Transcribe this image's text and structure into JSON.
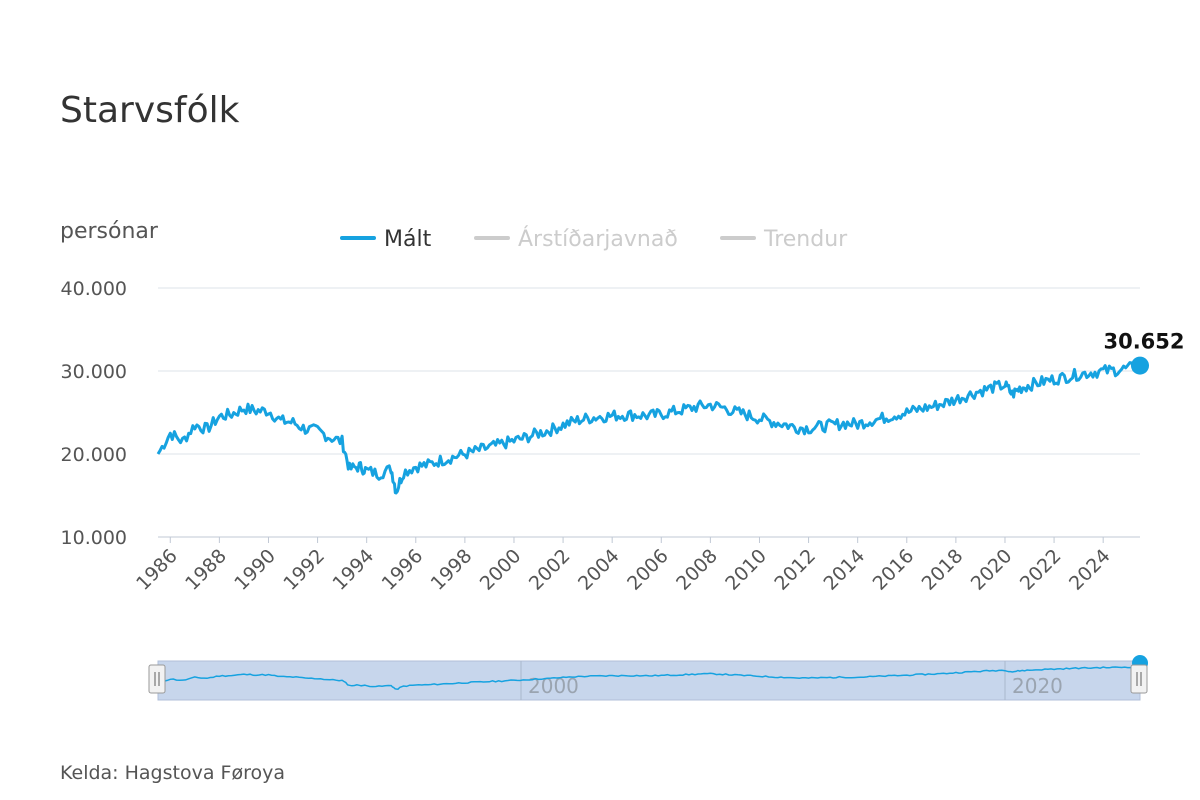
{
  "source_label": "Kelda: Hagstova Føroya",
  "colors": {
    "series": "#16a2e0",
    "inactive": "#cccccc",
    "grid": "#dde3ea",
    "navigator_fill": "#c7d6ec"
  },
  "chart_data": {
    "type": "line",
    "title": "Starvsfólk",
    "ylabel": "persónar",
    "ylim": [
      10000,
      40000
    ],
    "xlim": [
      1985.5,
      2025.5
    ],
    "yticks": [
      10000,
      20000,
      30000,
      40000
    ],
    "ytick_labels": [
      "10.000",
      "20.000",
      "30.000",
      "40.000"
    ],
    "xticks": [
      1986,
      1988,
      1990,
      1992,
      1994,
      1996,
      1998,
      2000,
      2002,
      2004,
      2006,
      2008,
      2010,
      2012,
      2014,
      2016,
      2018,
      2020,
      2022,
      2024
    ],
    "navigator_labels": [
      {
        "x": 2000,
        "label": "2000"
      },
      {
        "x": 2020,
        "label": "2020"
      }
    ],
    "legend": [
      {
        "name": "Mált",
        "active": true
      },
      {
        "name": "Árstíðarjavnað",
        "active": false
      },
      {
        "name": "Trendur",
        "active": false
      }
    ],
    "last_value_label": "30.652",
    "series": [
      {
        "name": "Mált",
        "points": [
          [
            1985.5,
            20000
          ],
          [
            1986.0,
            22500
          ],
          [
            1986.5,
            21500
          ],
          [
            1987.0,
            23500
          ],
          [
            1987.5,
            23000
          ],
          [
            1988.0,
            24500
          ],
          [
            1988.5,
            24800
          ],
          [
            1989.0,
            25500
          ],
          [
            1989.5,
            25200
          ],
          [
            1990.0,
            25200
          ],
          [
            1990.5,
            24000
          ],
          [
            1991.0,
            23800
          ],
          [
            1991.5,
            23000
          ],
          [
            1992.0,
            22800
          ],
          [
            1992.5,
            22000
          ],
          [
            1993.0,
            21500
          ],
          [
            1993.3,
            18200
          ],
          [
            1993.7,
            18500
          ],
          [
            1994.0,
            18000
          ],
          [
            1994.5,
            17600
          ],
          [
            1995.0,
            18200
          ],
          [
            1995.2,
            15500
          ],
          [
            1995.5,
            17800
          ],
          [
            1996.0,
            18500
          ],
          [
            1996.5,
            18700
          ],
          [
            1997.0,
            19200
          ],
          [
            1997.5,
            19600
          ],
          [
            1998.0,
            20000
          ],
          [
            1998.5,
            20400
          ],
          [
            1999.0,
            20800
          ],
          [
            1999.5,
            21200
          ],
          [
            2000.0,
            21600
          ],
          [
            2000.5,
            22000
          ],
          [
            2001.0,
            22500
          ],
          [
            2001.5,
            22900
          ],
          [
            2002.0,
            23500
          ],
          [
            2002.5,
            24000
          ],
          [
            2003.0,
            24300
          ],
          [
            2003.5,
            24500
          ],
          [
            2004.0,
            24600
          ],
          [
            2004.5,
            24700
          ],
          [
            2005.0,
            24700
          ],
          [
            2005.5,
            24600
          ],
          [
            2006.0,
            24800
          ],
          [
            2006.5,
            25100
          ],
          [
            2007.0,
            25400
          ],
          [
            2007.5,
            25700
          ],
          [
            2008.0,
            25900
          ],
          [
            2008.5,
            25600
          ],
          [
            2009.0,
            25100
          ],
          [
            2009.5,
            24700
          ],
          [
            2010.0,
            24300
          ],
          [
            2010.5,
            23900
          ],
          [
            2011.0,
            23600
          ],
          [
            2011.5,
            23200
          ],
          [
            2012.0,
            23100
          ],
          [
            2012.5,
            23300
          ],
          [
            2013.0,
            23500
          ],
          [
            2013.5,
            23700
          ],
          [
            2014.0,
            23600
          ],
          [
            2014.5,
            24000
          ],
          [
            2015.0,
            24300
          ],
          [
            2015.5,
            24700
          ],
          [
            2016.0,
            25000
          ],
          [
            2016.5,
            25400
          ],
          [
            2017.0,
            25700
          ],
          [
            2017.5,
            26100
          ],
          [
            2018.0,
            26600
          ],
          [
            2018.5,
            27100
          ],
          [
            2019.0,
            27600
          ],
          [
            2019.5,
            28000
          ],
          [
            2020.0,
            28300
          ],
          [
            2020.3,
            27200
          ],
          [
            2020.6,
            27900
          ],
          [
            2021.0,
            28300
          ],
          [
            2021.5,
            28700
          ],
          [
            2022.0,
            29000
          ],
          [
            2022.5,
            29300
          ],
          [
            2023.0,
            29600
          ],
          [
            2023.5,
            29800
          ],
          [
            2024.0,
            30000
          ],
          [
            2024.5,
            30100
          ],
          [
            2025.0,
            30300
          ],
          [
            2025.5,
            30652
          ]
        ]
      }
    ]
  }
}
